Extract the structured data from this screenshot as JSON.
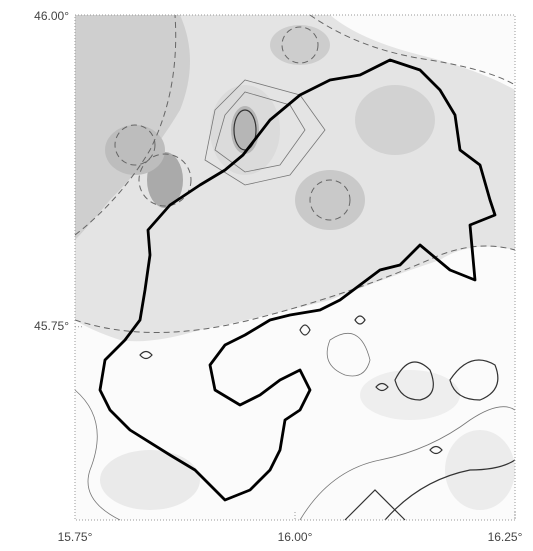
{
  "chart_data": {
    "type": "map",
    "xlim": [
      15.75,
      16.25
    ],
    "ylim": [
      45.595,
      46.0
    ],
    "xticks": [
      {
        "value": 15.75,
        "label": "15.75°"
      },
      {
        "value": 16.0,
        "label": "16.00°"
      },
      {
        "value": 16.25,
        "label": "16.25°"
      }
    ],
    "yticks": [
      {
        "value": 45.75,
        "label": "45.75°"
      },
      {
        "value": 46.0,
        "label": "46.00°"
      }
    ]
  }
}
